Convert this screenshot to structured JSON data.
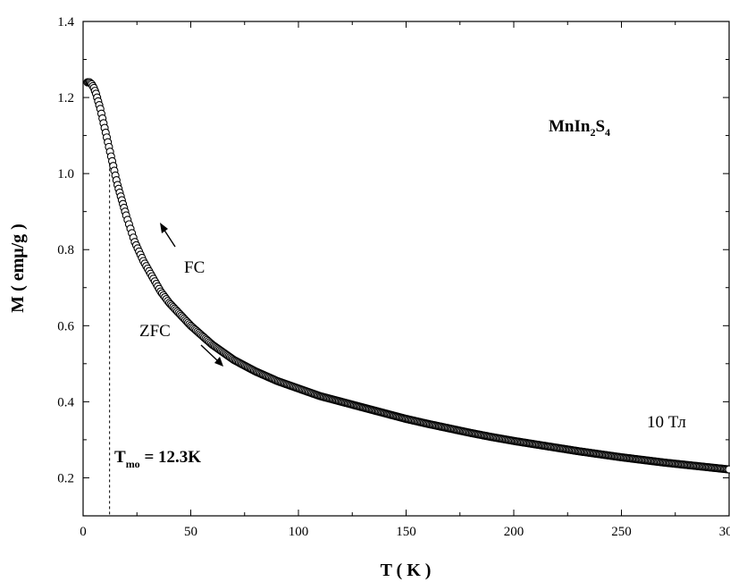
{
  "chart_data": {
    "type": "scatter",
    "xlabel": "T ( K )",
    "ylabel": "M ( emμ/g )",
    "xlim": [
      0,
      300
    ],
    "ylim": [
      0.1,
      1.4
    ],
    "xticks": [
      0,
      50,
      100,
      150,
      200,
      250,
      300
    ],
    "yticks": [
      0.2,
      0.4,
      0.6,
      0.8,
      1.0,
      1.2,
      1.4
    ],
    "xtick_labels": [
      "0",
      "50",
      "100",
      "150",
      "200",
      "250",
      "300"
    ],
    "ytick_labels": [
      "0.2",
      "0.4",
      "0.6",
      "0.8",
      "1.0",
      "1.2",
      "1.4"
    ],
    "grid": false,
    "marker": "open-circle",
    "series": [
      {
        "x": [
          2,
          3,
          4,
          5,
          6,
          7,
          8,
          9,
          10,
          11,
          12,
          13,
          14,
          15,
          16,
          17,
          18,
          19,
          20,
          22,
          24,
          26,
          28,
          30,
          32,
          34,
          36,
          38,
          40,
          45,
          50,
          55,
          60,
          70,
          80,
          90,
          100,
          110,
          120,
          130,
          140,
          150,
          160,
          170,
          180,
          190,
          200,
          210,
          220,
          230,
          240,
          250,
          260,
          270,
          280,
          290,
          300
        ],
        "y": [
          1.24,
          1.24,
          1.235,
          1.225,
          1.21,
          1.19,
          1.17,
          1.145,
          1.12,
          1.095,
          1.07,
          1.045,
          1.02,
          0.995,
          0.97,
          0.95,
          0.93,
          0.91,
          0.89,
          0.855,
          0.82,
          0.795,
          0.77,
          0.75,
          0.73,
          0.71,
          0.69,
          0.675,
          0.66,
          0.63,
          0.6,
          0.575,
          0.55,
          0.51,
          0.48,
          0.455,
          0.435,
          0.415,
          0.4,
          0.385,
          0.37,
          0.355,
          0.342,
          0.33,
          0.318,
          0.307,
          0.297,
          0.288,
          0.279,
          0.27,
          0.262,
          0.254,
          0.247,
          0.24,
          0.234,
          0.228,
          0.222
        ]
      }
    ],
    "annotations": {
      "compound_main": "MnIn",
      "compound_sub1": "2",
      "compound_mid": "S",
      "compound_sub2": "4",
      "fc": "FC",
      "zfc": "ZFC",
      "field": "10 Тл",
      "tmo_main": "T",
      "tmo_sub": "mo",
      "tmo_value": " = 12.3K",
      "tmo_x": 12.3
    }
  }
}
